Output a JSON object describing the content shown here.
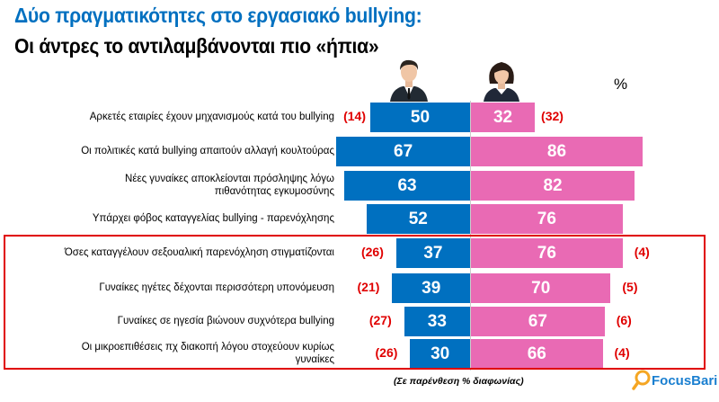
{
  "title_line1": "Δύο πραγματικότητες στο εργασιακό bullying:",
  "title_line2": "Οι άντρες το αντιλαμβάνονται πιο «ήπια»",
  "unit_label": "%",
  "note": "(Σε παρένθεση % διαφωνίας)",
  "logo": {
    "text": "FocusBari"
  },
  "colors": {
    "men": "#0070C0",
    "women": "#E96AB4",
    "disagree": "#E00000",
    "title": "#0070C0"
  },
  "chart_data": {
    "type": "bar",
    "orientation": "horizontal-diverging",
    "series_icons": [
      "man-avatar",
      "woman-avatar"
    ],
    "categories": [
      "Αρκετές εταιρίες έχουν μηχανισμούς κατά του bullying",
      "Οι πολιτικές κατά bullying απαιτούν αλλαγή κουλτούρας",
      "Νέες γυναίκες αποκλείονται πρόσληψης λόγω πιθανότητας εγκυμοσύνης",
      "Υπάρχει φόβος καταγγελίας bullying - παρενόχλησης",
      "Όσες καταγγέλουν σεξουαλική παρενόχληση στιγματίζονται",
      "Γυναίκες ηγέτες δέχονται περισσότερη υπονόμευση",
      "Γυναίκες σε ηγεσία βιώνουν συχνότερα bullying",
      "Οι μικροεπιθέσεις πχ διακοπή λόγου στοχεύουν κυρίως γυναίκες"
    ],
    "men": [
      50,
      67,
      63,
      52,
      37,
      39,
      33,
      30
    ],
    "women": [
      32,
      86,
      82,
      76,
      76,
      70,
      67,
      66
    ],
    "men_disagree": [
      "(14)",
      null,
      null,
      null,
      "(26)",
      "(21)",
      "(27)",
      "(26)"
    ],
    "women_disagree": [
      "(32)",
      null,
      null,
      null,
      "(4)",
      "(5)",
      "(6)",
      "(4)"
    ],
    "highlighted_rows": [
      4,
      5,
      6,
      7
    ]
  }
}
